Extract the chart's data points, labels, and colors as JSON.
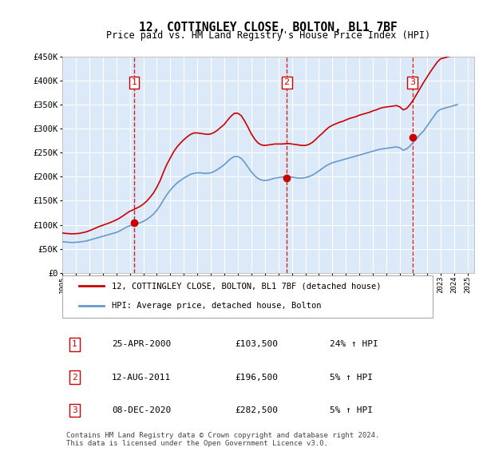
{
  "title": "12, COTTINGLEY CLOSE, BOLTON, BL1 7BF",
  "subtitle": "Price paid vs. HM Land Registry's House Price Index (HPI)",
  "background_color": "#ffffff",
  "plot_bg_color": "#dce9f8",
  "grid_color": "#ffffff",
  "ylim": [
    0,
    450000
  ],
  "yticks": [
    0,
    50000,
    100000,
    150000,
    200000,
    250000,
    300000,
    350000,
    400000,
    450000
  ],
  "ytick_labels": [
    "£0",
    "£50K",
    "£100K",
    "£150K",
    "£200K",
    "£250K",
    "£300K",
    "£350K",
    "£400K",
    "£450K"
  ],
  "transactions": [
    {
      "date_num": 2000.32,
      "price": 103500,
      "label": "1"
    },
    {
      "date_num": 2011.62,
      "price": 196500,
      "label": "2"
    },
    {
      "date_num": 2020.93,
      "price": 282500,
      "label": "3"
    }
  ],
  "transaction_vlines": [
    2000.32,
    2011.62,
    2020.93
  ],
  "sale_color": "#cc0000",
  "hpi_color": "#6699cc",
  "legend_label_sale": "12, COTTINGLEY CLOSE, BOLTON, BL1 7BF (detached house)",
  "legend_label_hpi": "HPI: Average price, detached house, Bolton",
  "table_rows": [
    {
      "num": "1",
      "date": "25-APR-2000",
      "price": "£103,500",
      "pct": "24% ↑ HPI"
    },
    {
      "num": "2",
      "date": "12-AUG-2011",
      "price": "£196,500",
      "pct": "5% ↑ HPI"
    },
    {
      "num": "3",
      "date": "08-DEC-2020",
      "price": "£282,500",
      "pct": "5% ↑ HPI"
    }
  ],
  "footnote": "Contains HM Land Registry data © Crown copyright and database right 2024.\nThis data is licensed under the Open Government Licence v3.0.",
  "hpi_data": {
    "years": [
      1995.0,
      1995.25,
      1995.5,
      1995.75,
      1996.0,
      1996.25,
      1996.5,
      1996.75,
      1997.0,
      1997.25,
      1997.5,
      1997.75,
      1998.0,
      1998.25,
      1998.5,
      1998.75,
      1999.0,
      1999.25,
      1999.5,
      1999.75,
      2000.0,
      2000.25,
      2000.5,
      2000.75,
      2001.0,
      2001.25,
      2001.5,
      2001.75,
      2002.0,
      2002.25,
      2002.5,
      2002.75,
      2003.0,
      2003.25,
      2003.5,
      2003.75,
      2004.0,
      2004.25,
      2004.5,
      2004.75,
      2005.0,
      2005.25,
      2005.5,
      2005.75,
      2006.0,
      2006.25,
      2006.5,
      2006.75,
      2007.0,
      2007.25,
      2007.5,
      2007.75,
      2008.0,
      2008.25,
      2008.5,
      2008.75,
      2009.0,
      2009.25,
      2009.5,
      2009.75,
      2010.0,
      2010.25,
      2010.5,
      2010.75,
      2011.0,
      2011.25,
      2011.5,
      2011.75,
      2012.0,
      2012.25,
      2012.5,
      2012.75,
      2013.0,
      2013.25,
      2013.5,
      2013.75,
      2014.0,
      2014.25,
      2014.5,
      2014.75,
      2015.0,
      2015.25,
      2015.5,
      2015.75,
      2016.0,
      2016.25,
      2016.5,
      2016.75,
      2017.0,
      2017.25,
      2017.5,
      2017.75,
      2018.0,
      2018.25,
      2018.5,
      2018.75,
      2019.0,
      2019.25,
      2019.5,
      2019.75,
      2020.0,
      2020.25,
      2020.5,
      2020.75,
      2021.0,
      2021.25,
      2021.5,
      2021.75,
      2022.0,
      2022.25,
      2022.5,
      2022.75,
      2023.0,
      2023.25,
      2023.5,
      2023.75,
      2024.0,
      2024.25
    ],
    "values": [
      65000,
      64000,
      63500,
      63000,
      63500,
      64000,
      65000,
      66000,
      68000,
      70000,
      72000,
      74000,
      76000,
      78000,
      80000,
      82000,
      84000,
      87000,
      91000,
      95000,
      98000,
      100000,
      102000,
      104000,
      107000,
      111000,
      116000,
      122000,
      130000,
      140000,
      152000,
      163000,
      172000,
      180000,
      187000,
      192000,
      197000,
      201000,
      205000,
      207000,
      208000,
      208000,
      207000,
      207000,
      208000,
      211000,
      215000,
      220000,
      225000,
      232000,
      238000,
      242000,
      242000,
      238000,
      230000,
      220000,
      210000,
      202000,
      196000,
      193000,
      192000,
      193000,
      195000,
      197000,
      198000,
      199000,
      200000,
      200000,
      199000,
      198000,
      197000,
      197000,
      198000,
      200000,
      203000,
      207000,
      212000,
      217000,
      222000,
      226000,
      229000,
      231000,
      233000,
      235000,
      237000,
      239000,
      241000,
      243000,
      245000,
      247000,
      249000,
      251000,
      253000,
      255000,
      257000,
      258000,
      259000,
      260000,
      261000,
      262000,
      260000,
      255000,
      258000,
      264000,
      272000,
      280000,
      288000,
      295000,
      305000,
      315000,
      325000,
      335000,
      340000,
      342000,
      344000,
      346000,
      348000,
      350000
    ]
  },
  "sale_hpi_data": {
    "years": [
      1995.0,
      1995.25,
      1995.5,
      1995.75,
      1996.0,
      1996.25,
      1996.5,
      1996.75,
      1997.0,
      1997.25,
      1997.5,
      1997.75,
      1998.0,
      1998.25,
      1998.5,
      1998.75,
      1999.0,
      1999.25,
      1999.5,
      1999.75,
      2000.0,
      2000.25,
      2000.5,
      2000.75,
      2001.0,
      2001.25,
      2001.5,
      2001.75,
      2002.0,
      2002.25,
      2002.5,
      2002.75,
      2003.0,
      2003.25,
      2003.5,
      2003.75,
      2004.0,
      2004.25,
      2004.5,
      2004.75,
      2005.0,
      2005.25,
      2005.5,
      2005.75,
      2006.0,
      2006.25,
      2006.5,
      2006.75,
      2007.0,
      2007.25,
      2007.5,
      2007.75,
      2008.0,
      2008.25,
      2008.5,
      2008.75,
      2009.0,
      2009.25,
      2009.5,
      2009.75,
      2010.0,
      2010.25,
      2010.5,
      2010.75,
      2011.0,
      2011.25,
      2011.5,
      2011.75,
      2012.0,
      2012.25,
      2012.5,
      2012.75,
      2013.0,
      2013.25,
      2013.5,
      2013.75,
      2014.0,
      2014.25,
      2014.5,
      2014.75,
      2015.0,
      2015.25,
      2015.5,
      2015.75,
      2016.0,
      2016.25,
      2016.5,
      2016.75,
      2017.0,
      2017.25,
      2017.5,
      2017.75,
      2018.0,
      2018.25,
      2018.5,
      2018.75,
      2019.0,
      2019.25,
      2019.5,
      2019.75,
      2020.0,
      2020.25,
      2020.5,
      2020.75,
      2021.0,
      2021.25,
      2021.5,
      2021.75,
      2022.0,
      2022.25,
      2022.5,
      2022.75,
      2023.0,
      2023.25,
      2023.5,
      2023.75,
      2024.0,
      2024.25
    ],
    "values": [
      83000,
      82000,
      81500,
      81000,
      81500,
      82000,
      83500,
      85000,
      87500,
      90500,
      93500,
      96500,
      99000,
      101500,
      104000,
      107000,
      110000,
      114000,
      118500,
      123500,
      128000,
      131000,
      134500,
      138000,
      143000,
      149000,
      157000,
      166000,
      178000,
      192000,
      210000,
      226000,
      239000,
      252000,
      262000,
      270000,
      277000,
      283000,
      288000,
      291000,
      291000,
      290000,
      289000,
      288000,
      289000,
      292000,
      297000,
      303000,
      309000,
      318000,
      326000,
      332000,
      332000,
      327000,
      316000,
      303000,
      289000,
      278000,
      270000,
      266000,
      265000,
      266000,
      267000,
      268000,
      268000,
      268000,
      268500,
      269000,
      268000,
      267000,
      266000,
      265000,
      265000,
      267000,
      271000,
      277000,
      284000,
      290000,
      297000,
      303000,
      307000,
      310000,
      313000,
      315000,
      318000,
      321000,
      323000,
      325000,
      328000,
      330000,
      332000,
      334000,
      337000,
      339000,
      342000,
      344000,
      345000,
      346000,
      347000,
      348000,
      345000,
      339000,
      342000,
      350000,
      360000,
      372000,
      384000,
      396000,
      407000,
      418000,
      428000,
      438000,
      445000,
      447000,
      449000,
      451000,
      452000,
      453000
    ]
  }
}
